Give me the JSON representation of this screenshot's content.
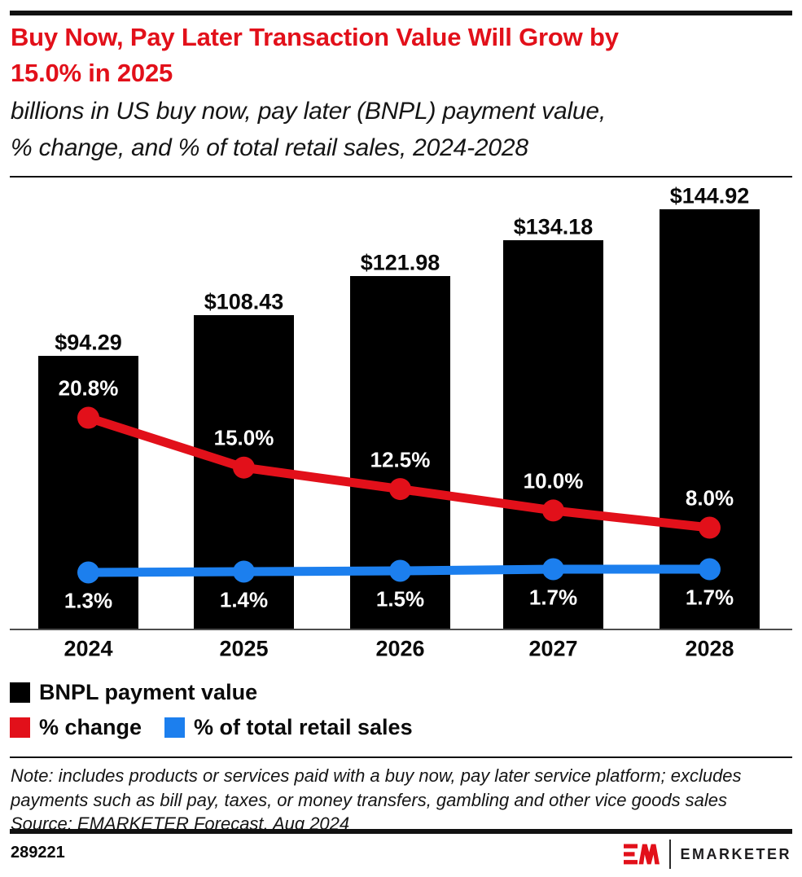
{
  "header": {
    "title_lines": [
      "Buy Now, Pay Later Transaction Value Will Grow by",
      "15.0% in 2025"
    ],
    "subtitle_lines": [
      "billions in US buy now, pay later (BNPL) payment value,",
      "% change, and % of total retail sales, 2024-2028"
    ]
  },
  "chart_data": {
    "type": "bar",
    "title": "Buy Now, Pay Later Transaction Value Will Grow by 15.0% in 2025",
    "subtitle": "billions in US buy now, pay later (BNPL) payment value, % change, and % of total retail sales, 2024-2028",
    "categories": [
      "2024",
      "2025",
      "2026",
      "2027",
      "2028"
    ],
    "series": [
      {
        "name": "BNPL payment value",
        "type": "bar",
        "unit": "billions of US dollars",
        "values": [
          94.29,
          108.43,
          121.98,
          134.18,
          144.92
        ],
        "labels": [
          "$94.29",
          "$108.43",
          "$121.98",
          "$134.18",
          "$144.92"
        ],
        "color": "#000000"
      },
      {
        "name": "% change",
        "type": "line",
        "unit": "percent",
        "values": [
          20.8,
          15.0,
          12.5,
          10.0,
          8.0
        ],
        "labels": [
          "20.8%",
          "15.0%",
          "12.5%",
          "10.0%",
          "8.0%"
        ],
        "color": "#E2101A"
      },
      {
        "name": "% of total retail sales",
        "type": "line",
        "unit": "percent",
        "values": [
          1.3,
          1.4,
          1.5,
          1.7,
          1.7
        ],
        "labels": [
          "1.3%",
          "1.4%",
          "1.5%",
          "1.7%",
          "1.7%"
        ],
        "color": "#1C7FEE"
      }
    ],
    "xlabel": "",
    "ylabel": "",
    "ylim": [
      0,
      145
    ],
    "grid": false,
    "legend_position": "bottom-left"
  },
  "legend": {
    "items": [
      {
        "label": "BNPL payment value"
      },
      {
        "label": "% change"
      },
      {
        "label": "% of total retail sales"
      }
    ]
  },
  "note_lines": [
    "Note: includes products or services paid with a buy now, pay later service platform; excludes",
    "payments such as bill pay, taxes, or money transfers, gambling and other vice goods sales",
    "Source: EMARKETER Forecast, Aug 2024"
  ],
  "footer": {
    "chart_id": "289221",
    "brand_wordmark": "EMARKETER"
  },
  "colors": {
    "accent_red": "#E2101A",
    "line_blue": "#1C7FEE",
    "bar_black": "#000000",
    "rule_dark": "#111111",
    "axis_gray": "#4d4d4d"
  }
}
